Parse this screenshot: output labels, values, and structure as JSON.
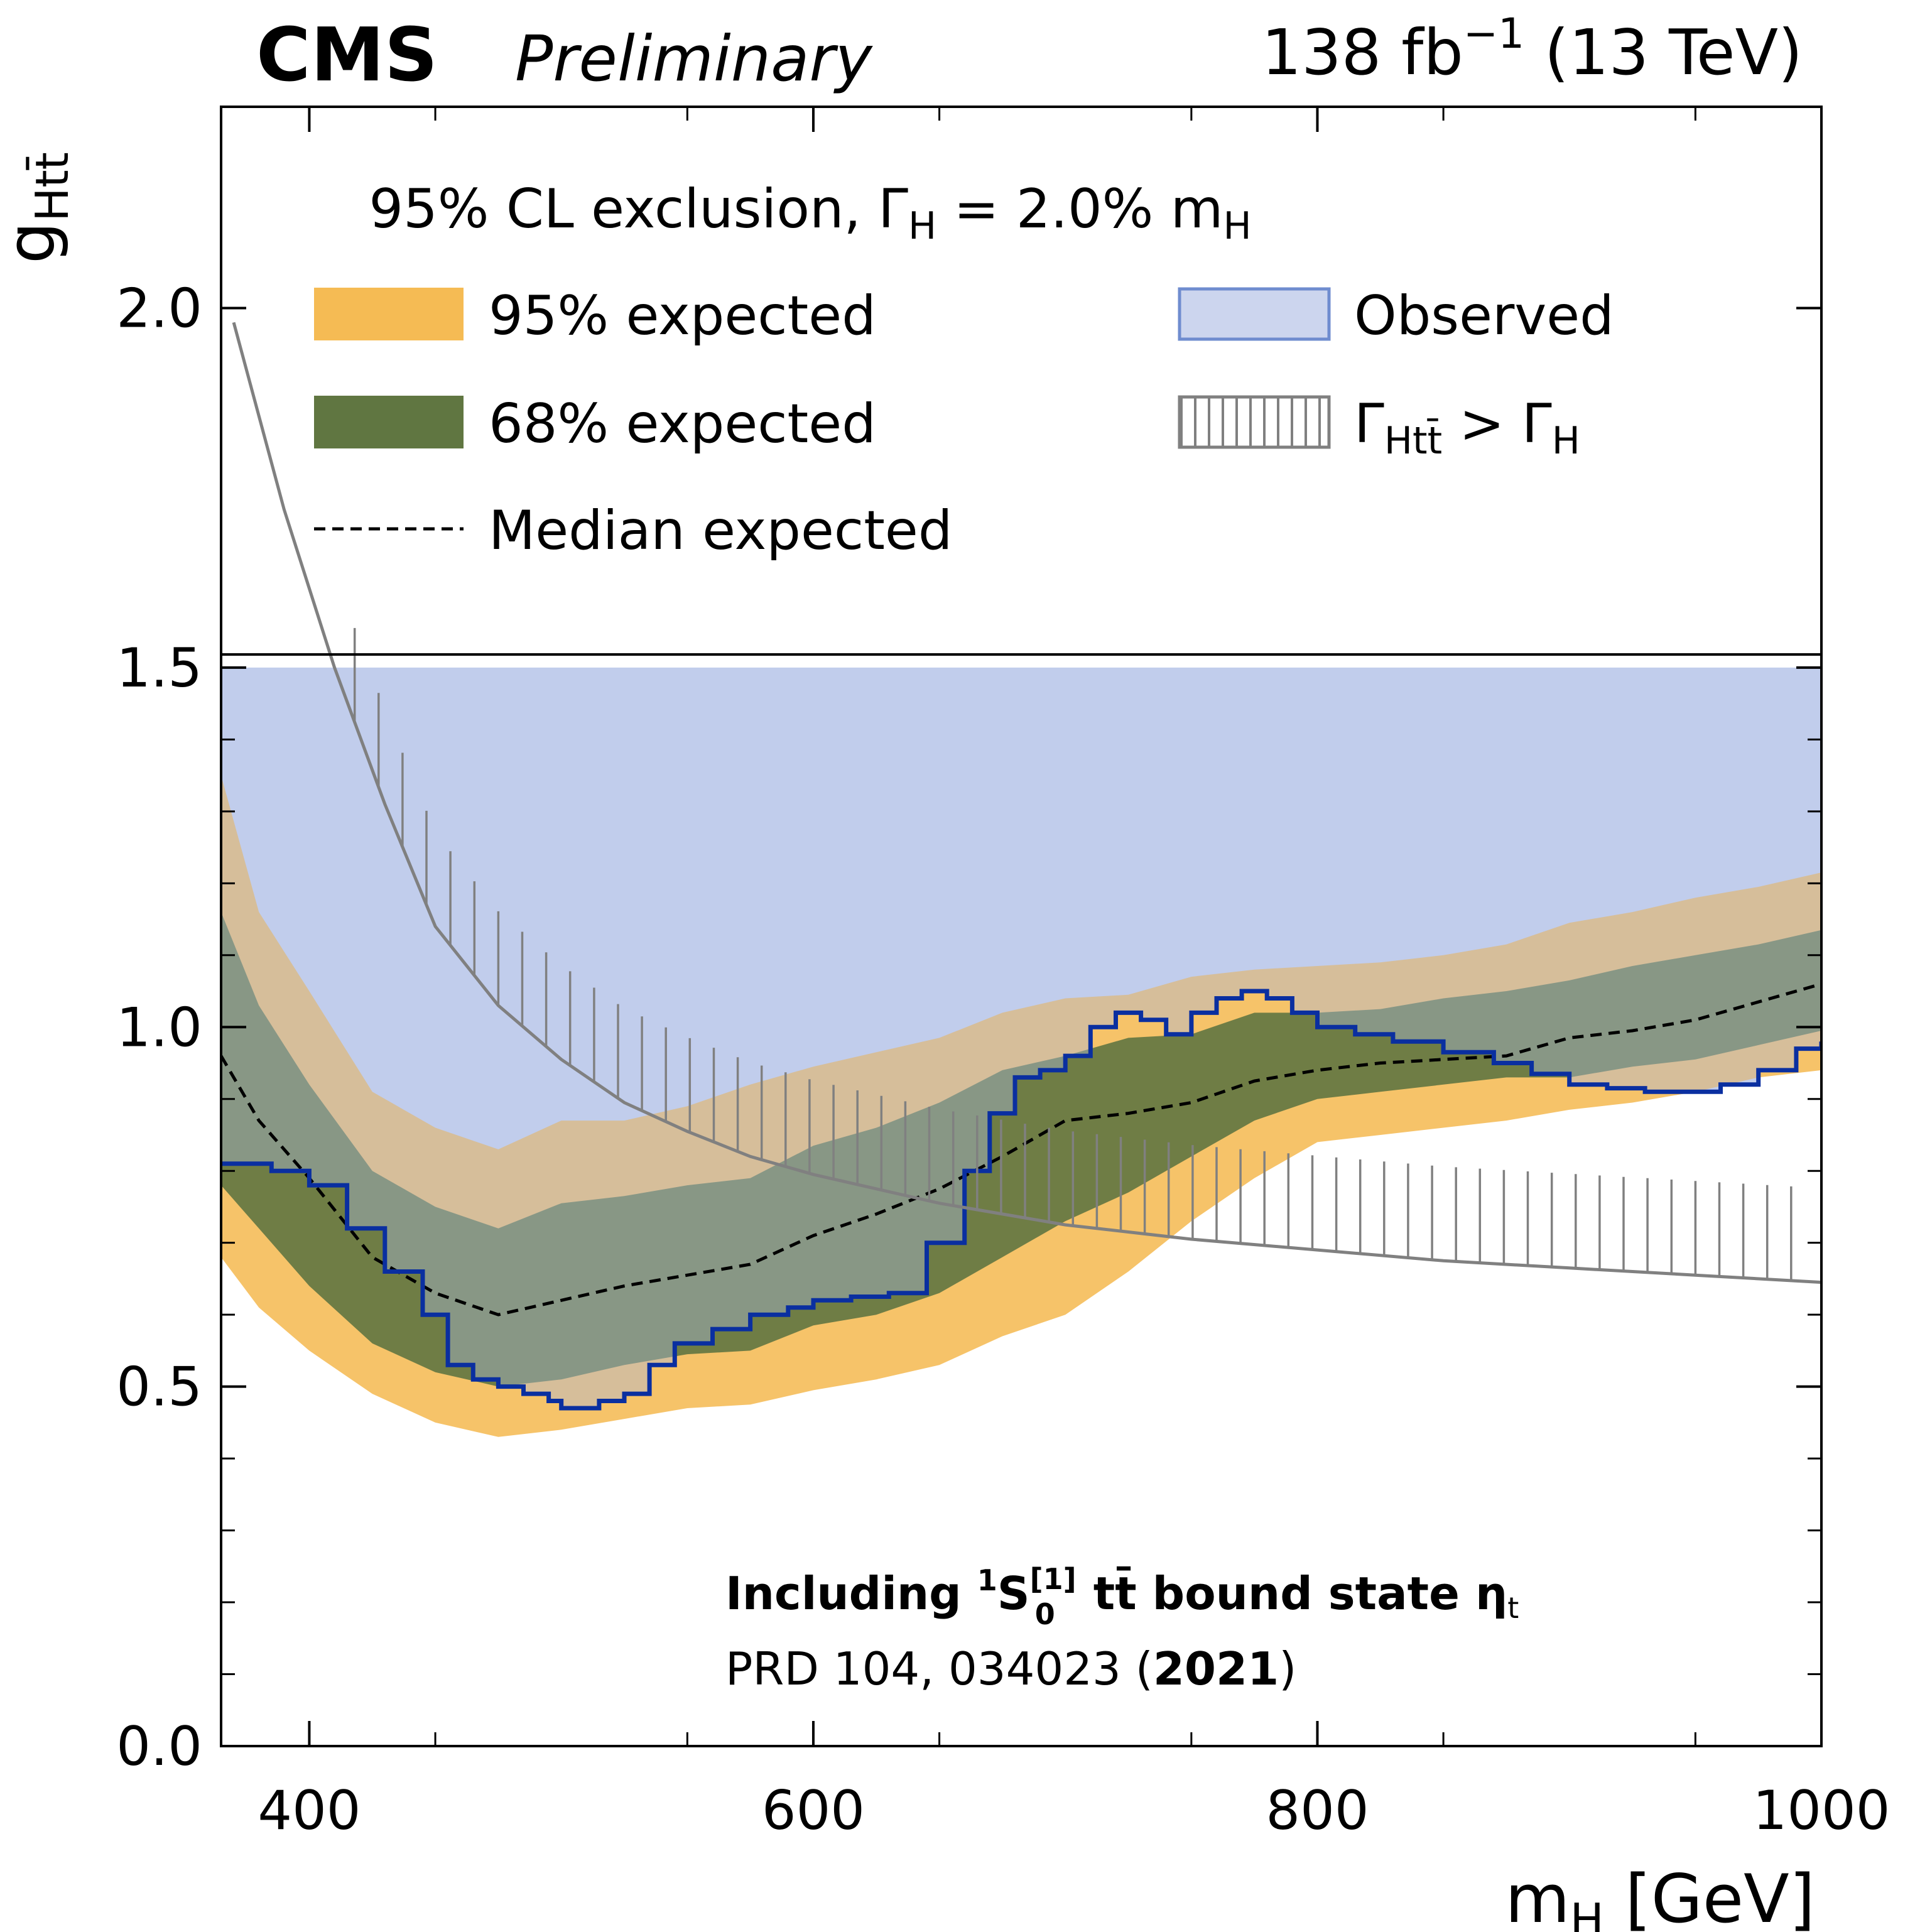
{
  "header": {
    "experiment": "CMS",
    "status": "Preliminary",
    "lumi_value": "138 fb",
    "lumi_exponent": "−1",
    "energy": " (13 TeV)"
  },
  "legend": {
    "title_prefix": "95% CL exclusion, Γ",
    "title_sub": "H",
    "title_mid": " =  2.0% m",
    "title_sub2": "H",
    "band95": "95% expected",
    "band68": "68% expected",
    "median": "Median expected",
    "observed": "Observed",
    "width_prefix": "Γ",
    "width_sub": "Htt̄",
    "width_mid": " > Γ",
    "width_sub2": "H"
  },
  "annotation": {
    "line1_prefix": "Including ",
    "line1_sup": "1",
    "line1_S": "S",
    "line1_sup2": "[1]",
    "line1_sub2": "0",
    "line1_suffix": " tt̄ bound state η",
    "line1_sub": "t",
    "line2_prefix": "PRD 104, 034023 (",
    "line2_bold": "2021",
    "line2_suffix": ")"
  },
  "colors": {
    "band95": "#F5BB54",
    "band68": "#607641",
    "observed_fill": "#AEBDE6",
    "observed_line": "#0A2FA0",
    "width_line": "#808080",
    "median": "#000000"
  },
  "chart_data": {
    "type": "line",
    "x_label_var": "m",
    "x_label_sub": "H",
    "x_label_unit": " [GeV]",
    "y_label_var": "g",
    "y_label_sub": "Htt̄",
    "xlim": [
      365,
      1000
    ],
    "ylim": [
      0,
      2.28
    ],
    "xticks": [
      "400",
      "600",
      "800",
      "1000"
    ],
    "yticks": [
      "0.0",
      "0.5",
      "1.0",
      "1.5",
      "2.0"
    ],
    "observed_clip_ymax": 1.5,
    "grid": false,
    "legend_position": "top",
    "mass_points": [
      365,
      380,
      400,
      425,
      450,
      475,
      500,
      525,
      550,
      575,
      600,
      625,
      650,
      675,
      700,
      725,
      750,
      775,
      800,
      825,
      850,
      875,
      900,
      925,
      950,
      975,
      1000
    ],
    "expected_median": [
      0.96,
      0.87,
      0.79,
      0.68,
      0.63,
      0.6,
      0.62,
      0.64,
      0.655,
      0.67,
      0.71,
      0.74,
      0.775,
      0.82,
      0.87,
      0.88,
      0.895,
      0.925,
      0.94,
      0.95,
      0.955,
      0.96,
      0.985,
      0.995,
      1.01,
      1.035,
      1.06
    ],
    "expected_68_low": [
      0.78,
      0.72,
      0.64,
      0.56,
      0.52,
      0.5,
      0.51,
      0.53,
      0.545,
      0.55,
      0.585,
      0.6,
      0.63,
      0.68,
      0.73,
      0.77,
      0.82,
      0.87,
      0.9,
      0.91,
      0.92,
      0.93,
      0.93,
      0.945,
      0.955,
      0.975,
      0.995
    ],
    "expected_68_high": [
      1.16,
      1.03,
      0.92,
      0.8,
      0.75,
      0.72,
      0.755,
      0.765,
      0.78,
      0.79,
      0.835,
      0.86,
      0.895,
      0.94,
      0.96,
      0.985,
      0.99,
      1.02,
      1.02,
      1.025,
      1.04,
      1.05,
      1.065,
      1.085,
      1.1,
      1.115,
      1.135
    ],
    "expected_95_low": [
      0.68,
      0.61,
      0.55,
      0.49,
      0.45,
      0.43,
      0.44,
      0.455,
      0.47,
      0.475,
      0.495,
      0.51,
      0.53,
      0.57,
      0.6,
      0.66,
      0.73,
      0.79,
      0.84,
      0.85,
      0.86,
      0.87,
      0.885,
      0.895,
      0.91,
      0.93,
      0.94
    ],
    "expected_95_high": [
      1.35,
      1.16,
      1.05,
      0.91,
      0.86,
      0.83,
      0.87,
      0.87,
      0.89,
      0.92,
      0.945,
      0.965,
      0.985,
      1.02,
      1.04,
      1.045,
      1.07,
      1.08,
      1.085,
      1.09,
      1.1,
      1.115,
      1.145,
      1.16,
      1.18,
      1.195,
      1.215
    ],
    "observed_mass": [
      365,
      385,
      400,
      415,
      430,
      445,
      455,
      465,
      475,
      485,
      495,
      500,
      515,
      525,
      535,
      545,
      560,
      575,
      590,
      600,
      615,
      630,
      645,
      660,
      670,
      680,
      690,
      700,
      710,
      720,
      730,
      740,
      750,
      760,
      770,
      780,
      790,
      800,
      815,
      830,
      850,
      870,
      885,
      900,
      915,
      930,
      945,
      960,
      975,
      990,
      1000
    ],
    "observed_limit": [
      0.81,
      0.8,
      0.78,
      0.72,
      0.66,
      0.6,
      0.53,
      0.51,
      0.5,
      0.49,
      0.48,
      0.47,
      0.48,
      0.49,
      0.53,
      0.56,
      0.58,
      0.6,
      0.61,
      0.62,
      0.625,
      0.63,
      0.7,
      0.8,
      0.88,
      0.93,
      0.94,
      0.96,
      1.0,
      1.02,
      1.01,
      0.99,
      1.02,
      1.04,
      1.05,
      1.04,
      1.02,
      1.0,
      0.99,
      0.98,
      0.965,
      0.95,
      0.935,
      0.92,
      0.915,
      0.91,
      0.91,
      0.92,
      0.94,
      0.97,
      0.98
    ],
    "width_mass": [
      370,
      390,
      410,
      430,
      450,
      475,
      500,
      525,
      550,
      575,
      600,
      625,
      650,
      675,
      700,
      725,
      750,
      800,
      850,
      900,
      950,
      1000
    ],
    "width_limit": [
      1.98,
      1.72,
      1.5,
      1.31,
      1.14,
      1.03,
      0.955,
      0.895,
      0.855,
      0.82,
      0.795,
      0.775,
      0.755,
      0.74,
      0.725,
      0.715,
      0.705,
      0.69,
      0.675,
      0.665,
      0.655,
      0.645
    ]
  }
}
